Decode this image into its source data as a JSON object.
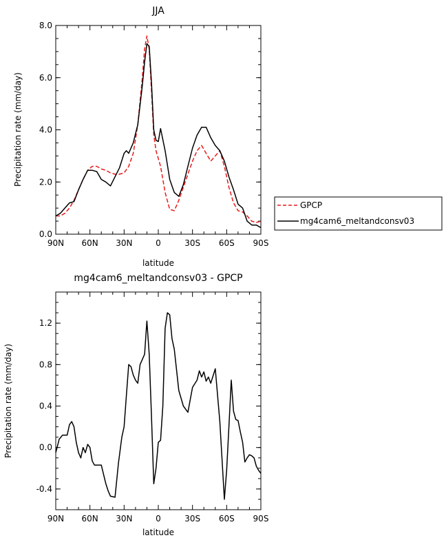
{
  "chart_data": [
    {
      "type": "line",
      "title": "JJA",
      "xlabel": "latitude",
      "ylabel": "Precipitation rate (mm/day)",
      "x_ticklabels": [
        "90N",
        "60N",
        "30N",
        "0",
        "30S",
        "60S",
        "90S"
      ],
      "x_tick_values": [
        90,
        60,
        30,
        0,
        -30,
        -60,
        -90
      ],
      "xlim": [
        90,
        -90
      ],
      "ylim": [
        0,
        8
      ],
      "y_ticklabels": [
        "0.0",
        "2.0",
        "4.0",
        "6.0",
        "8.0"
      ],
      "y_tick_values": [
        0,
        2,
        4,
        6,
        8
      ],
      "legend_position": "right",
      "series": [
        {
          "name": "GPCP",
          "color": "#e8191a",
          "dash": true,
          "x": [
            90,
            86,
            82,
            78,
            74,
            70,
            66,
            62,
            58,
            54,
            50,
            46,
            42,
            38,
            34,
            30,
            26,
            22,
            18,
            14,
            12,
            10,
            8,
            6,
            4,
            2,
            0,
            -2,
            -6,
            -10,
            -14,
            -18,
            -22,
            -26,
            -30,
            -34,
            -38,
            -42,
            -46,
            -50,
            -54,
            -58,
            -62,
            -66,
            -70,
            -74,
            -78,
            -82,
            -86,
            -90
          ],
          "y": [
            0.7,
            0.7,
            0.8,
            1.0,
            1.3,
            1.7,
            2.1,
            2.45,
            2.6,
            2.6,
            2.5,
            2.45,
            2.35,
            2.3,
            2.3,
            2.35,
            2.6,
            3.1,
            4.2,
            6.0,
            7.1,
            7.6,
            7.1,
            5.5,
            3.8,
            3.2,
            2.9,
            2.6,
            1.6,
            0.95,
            0.9,
            1.3,
            1.8,
            2.3,
            2.8,
            3.2,
            3.4,
            3.1,
            2.8,
            3.0,
            3.2,
            2.6,
            1.8,
            1.2,
            0.9,
            0.85,
            0.7,
            0.5,
            0.45,
            0.5
          ]
        },
        {
          "name": "mg4cam6_meltandconsv03",
          "color": "#000000",
          "dash": false,
          "x": [
            90,
            86,
            82,
            78,
            74,
            70,
            66,
            62,
            58,
            54,
            50,
            46,
            42,
            38,
            34,
            30,
            28,
            26,
            22,
            18,
            14,
            12,
            10,
            8,
            6,
            4,
            2,
            0,
            -2,
            -6,
            -10,
            -14,
            -18,
            -22,
            -26,
            -30,
            -34,
            -38,
            -42,
            -46,
            -50,
            -54,
            -58,
            -62,
            -66,
            -70,
            -74,
            -78,
            -82,
            -86,
            -90
          ],
          "y": [
            0.7,
            0.8,
            1.0,
            1.2,
            1.25,
            1.7,
            2.1,
            2.45,
            2.45,
            2.4,
            2.1,
            2.0,
            1.85,
            2.2,
            2.55,
            3.1,
            3.2,
            3.1,
            3.5,
            4.2,
            5.7,
            6.6,
            7.3,
            7.2,
            5.8,
            4.0,
            3.6,
            3.55,
            4.05,
            3.2,
            2.1,
            1.6,
            1.45,
            1.9,
            2.6,
            3.3,
            3.8,
            4.1,
            4.1,
            3.7,
            3.4,
            3.2,
            2.8,
            2.2,
            1.7,
            1.15,
            1.0,
            0.5,
            0.35,
            0.35,
            0.25
          ]
        }
      ]
    },
    {
      "type": "line",
      "title": "mg4cam6_meltandconsv03 - GPCP",
      "xlabel": "latitude",
      "ylabel": "Precipitation rate (mm/day)",
      "x_ticklabels": [
        "90N",
        "60N",
        "30N",
        "0",
        "30S",
        "60S",
        "90S"
      ],
      "x_tick_values": [
        90,
        60,
        30,
        0,
        -30,
        -60,
        -90
      ],
      "xlim": [
        90,
        -90
      ],
      "ylim": [
        -0.6,
        1.5
      ],
      "y_ticklabels": [
        "-0.4",
        "0.0",
        "0.4",
        "0.8",
        "1.2"
      ],
      "y_tick_values": [
        -0.4,
        0,
        0.4,
        0.8,
        1.2
      ],
      "series": [
        {
          "name": "",
          "color": "#000000",
          "dash": false,
          "x": [
            90,
            87,
            84,
            80,
            78,
            76,
            74,
            72,
            70,
            68,
            66,
            64,
            62,
            60,
            58,
            56,
            54,
            50,
            46,
            44,
            42,
            38,
            35,
            32,
            30,
            28,
            26,
            24,
            22,
            20,
            18,
            16,
            14,
            12,
            10,
            8,
            6,
            4,
            2,
            0,
            -2,
            -4,
            -6,
            -8,
            -10,
            -12,
            -14,
            -18,
            -22,
            -26,
            -30,
            -34,
            -36,
            -38,
            -40,
            -42,
            -44,
            -46,
            -50,
            -54,
            -58,
            -60,
            -62,
            -64,
            -66,
            -68,
            -70,
            -72,
            -74,
            -76,
            -78,
            -80,
            -82,
            -84,
            -86,
            -88,
            -90
          ],
          "y": [
            -0.05,
            0.08,
            0.12,
            0.12,
            0.22,
            0.25,
            0.2,
            0.05,
            -0.05,
            -0.1,
            0.0,
            -0.05,
            0.03,
            0.0,
            -0.13,
            -0.17,
            -0.17,
            -0.17,
            -0.35,
            -0.42,
            -0.47,
            -0.48,
            -0.15,
            0.1,
            0.2,
            0.5,
            0.8,
            0.78,
            0.7,
            0.65,
            0.62,
            0.8,
            0.85,
            0.9,
            1.22,
            0.9,
            0.3,
            -0.35,
            -0.2,
            0.05,
            0.07,
            0.4,
            1.15,
            1.3,
            1.28,
            1.05,
            0.95,
            0.55,
            0.4,
            0.34,
            0.58,
            0.65,
            0.74,
            0.68,
            0.73,
            0.64,
            0.68,
            0.62,
            0.76,
            0.25,
            -0.5,
            -0.22,
            0.2,
            0.65,
            0.35,
            0.27,
            0.26,
            0.15,
            0.05,
            -0.14,
            -0.1,
            -0.07,
            -0.08,
            -0.1,
            -0.18,
            -0.22,
            -0.25
          ]
        }
      ]
    }
  ]
}
